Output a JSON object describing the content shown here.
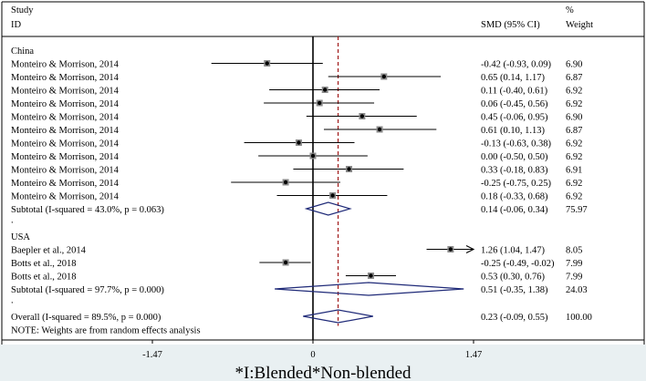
{
  "chart_data": {
    "type": "forest",
    "columns": {
      "study": [
        "Study",
        "ID"
      ],
      "effect": "SMD (95% CI)",
      "weight": [
        "%",
        "Weight"
      ]
    },
    "xaxis": {
      "ticks": [
        -1.47,
        0,
        1.47
      ],
      "tick_labels": [
        "-1.47",
        "0",
        "1.47"
      ],
      "range": [
        -1.47,
        1.47
      ]
    },
    "reference_line": 0,
    "overall_line": 0.23,
    "caption": "*I:Blended*Non-blended",
    "groups": [
      {
        "name": "China",
        "studies": [
          {
            "label": "Monteiro & Morrison, 2014",
            "es": -0.42,
            "lo": -0.93,
            "hi": 0.09,
            "text": "-0.42 (-0.93, 0.09)",
            "weight": "6.90"
          },
          {
            "label": "Monteiro & Morrison, 2014",
            "es": 0.65,
            "lo": 0.14,
            "hi": 1.17,
            "text": "0.65 (0.14, 1.17)",
            "weight": "6.87"
          },
          {
            "label": "Monteiro & Morrison, 2014",
            "es": 0.11,
            "lo": -0.4,
            "hi": 0.61,
            "text": "0.11 (-0.40, 0.61)",
            "weight": "6.92"
          },
          {
            "label": "Monteiro & Morrison, 2014",
            "es": 0.06,
            "lo": -0.45,
            "hi": 0.56,
            "text": "0.06 (-0.45, 0.56)",
            "weight": "6.92"
          },
          {
            "label": "Monteiro & Morrison, 2014",
            "es": 0.45,
            "lo": -0.06,
            "hi": 0.95,
            "text": "0.45 (-0.06, 0.95)",
            "weight": "6.90"
          },
          {
            "label": "Monteiro & Morrison, 2014",
            "es": 0.61,
            "lo": 0.1,
            "hi": 1.13,
            "text": "0.61 (0.10, 1.13)",
            "weight": "6.87"
          },
          {
            "label": "Monteiro & Morrison, 2014",
            "es": -0.13,
            "lo": -0.63,
            "hi": 0.38,
            "text": "-0.13 (-0.63, 0.38)",
            "weight": "6.92"
          },
          {
            "label": "Monteiro & Morrison, 2014",
            "es": 0.0,
            "lo": -0.5,
            "hi": 0.5,
            "text": "0.00 (-0.50, 0.50)",
            "weight": "6.92"
          },
          {
            "label": "Monteiro & Morrison, 2014",
            "es": 0.33,
            "lo": -0.18,
            "hi": 0.83,
            "text": "0.33 (-0.18, 0.83)",
            "weight": "6.91"
          },
          {
            "label": "Monteiro & Morrison, 2014",
            "es": -0.25,
            "lo": -0.75,
            "hi": 0.25,
            "text": "-0.25 (-0.75, 0.25)",
            "weight": "6.92"
          },
          {
            "label": "Monteiro & Morrison, 2014",
            "es": 0.18,
            "lo": -0.33,
            "hi": 0.68,
            "text": "0.18 (-0.33, 0.68)",
            "weight": "6.92"
          }
        ],
        "subtotal": {
          "label": "Subtotal  (I-squared = 43.0%, p = 0.063)",
          "es": 0.14,
          "lo": -0.06,
          "hi": 0.34,
          "text": "0.14 (-0.06, 0.34)",
          "weight": "75.97"
        }
      },
      {
        "name": "USA",
        "studies": [
          {
            "label": "Baepler et al., 2014",
            "es": 1.26,
            "lo": 1.04,
            "hi": 1.47,
            "text": "1.26 (1.04, 1.47)",
            "weight": "8.05",
            "arrow": true
          },
          {
            "label": "Botts et al., 2018",
            "es": -0.25,
            "lo": -0.49,
            "hi": -0.02,
            "text": "-0.25 (-0.49, -0.02)",
            "weight": "7.99"
          },
          {
            "label": "Botts et al., 2018",
            "es": 0.53,
            "lo": 0.3,
            "hi": 0.76,
            "text": "0.53 (0.30, 0.76)",
            "weight": "7.99"
          }
        ],
        "subtotal": {
          "label": "Subtotal  (I-squared = 97.7%, p = 0.000)",
          "es": 0.51,
          "lo": -0.35,
          "hi": 1.38,
          "text": "0.51 (-0.35, 1.38)",
          "weight": "24.03"
        }
      }
    ],
    "overall": {
      "label": "Overall  (I-squared = 89.5%, p = 0.000)",
      "es": 0.23,
      "lo": -0.09,
      "hi": 0.55,
      "text": "0.23 (-0.09, 0.55)",
      "weight": "100.00"
    },
    "separator": ".",
    "note": "NOTE: Weights are from random effects analysis",
    "colors": {
      "background": "#ffffff",
      "caption_band": "#e9f0f2",
      "diamond": "#1f2a78",
      "overall_line": "#a01818",
      "axis": "#000000",
      "text": "#000000"
    }
  }
}
